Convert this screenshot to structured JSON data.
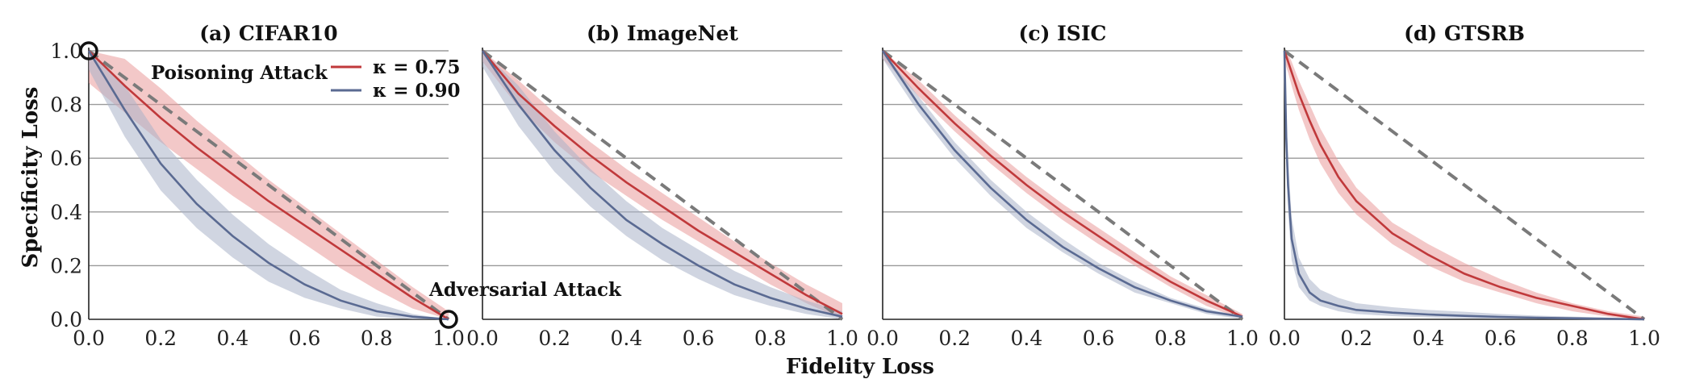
{
  "figure": {
    "xlabel": "Fidelity Loss",
    "ylabel": "Specificity Loss"
  },
  "legend": [
    {
      "label": "κ = 0.75",
      "color": "#c0393b"
    },
    {
      "label": "κ = 0.90",
      "color": "#5a6a92"
    }
  ],
  "annotations": {
    "poisoning": "Poisoning Attack",
    "adversarial": "Adversarial Attack"
  },
  "colors": {
    "red_line": "#c0393b",
    "red_band": "#e99a9a",
    "blue_line": "#5a6a92",
    "blue_band": "#a9b3c8",
    "diagonal": "#7a7a7a",
    "grid": "#9a9a9a"
  },
  "chart_data": [
    {
      "type": "line",
      "title": "(a) CIFAR10",
      "xlim": [
        0,
        1
      ],
      "ylim": [
        0,
        1
      ],
      "xticks": [
        "0.0",
        "0.2",
        "0.4",
        "0.6",
        "0.8",
        "1.0"
      ],
      "yticks": [
        "0.0",
        "0.2",
        "0.4",
        "0.6",
        "0.8",
        "1.0"
      ],
      "grid": "horizontal",
      "legend_position": "top-right",
      "x": [
        0,
        0.1,
        0.2,
        0.3,
        0.4,
        0.5,
        0.6,
        0.7,
        0.8,
        0.9,
        1.0
      ],
      "series": [
        {
          "name": "κ = 0.75",
          "values": [
            1.0,
            0.87,
            0.75,
            0.64,
            0.54,
            0.44,
            0.35,
            0.26,
            0.17,
            0.08,
            0.0
          ],
          "lower": [
            0.88,
            0.77,
            0.66,
            0.56,
            0.46,
            0.37,
            0.28,
            0.19,
            0.11,
            0.04,
            0.0
          ],
          "upper": [
            1.0,
            0.97,
            0.86,
            0.74,
            0.63,
            0.52,
            0.42,
            0.32,
            0.22,
            0.12,
            0.03
          ]
        },
        {
          "name": "κ = 0.90",
          "values": [
            1.0,
            0.78,
            0.58,
            0.43,
            0.31,
            0.21,
            0.13,
            0.07,
            0.03,
            0.01,
            0.0
          ],
          "lower": [
            0.93,
            0.68,
            0.48,
            0.34,
            0.23,
            0.14,
            0.08,
            0.04,
            0.01,
            0.0,
            0.0
          ],
          "upper": [
            1.0,
            0.87,
            0.67,
            0.52,
            0.39,
            0.28,
            0.19,
            0.11,
            0.06,
            0.02,
            0.0
          ]
        }
      ]
    },
    {
      "type": "line",
      "title": "(b) ImageNet",
      "xlim": [
        0,
        1
      ],
      "ylim": [
        0,
        1
      ],
      "xticks": [
        "0.0",
        "0.2",
        "0.4",
        "0.6",
        "0.8",
        "1.0"
      ],
      "yticks": [],
      "grid": "horizontal",
      "x": [
        0,
        0.1,
        0.2,
        0.3,
        0.4,
        0.5,
        0.6,
        0.7,
        0.8,
        0.9,
        1.0
      ],
      "series": [
        {
          "name": "κ = 0.75",
          "values": [
            1.0,
            0.84,
            0.72,
            0.61,
            0.51,
            0.42,
            0.33,
            0.25,
            0.17,
            0.09,
            0.02
          ],
          "lower": [
            0.96,
            0.79,
            0.66,
            0.55,
            0.46,
            0.37,
            0.29,
            0.21,
            0.13,
            0.06,
            0.0
          ],
          "upper": [
            1.0,
            0.89,
            0.77,
            0.66,
            0.56,
            0.47,
            0.38,
            0.29,
            0.21,
            0.13,
            0.06
          ]
        },
        {
          "name": "κ = 0.90",
          "values": [
            1.0,
            0.8,
            0.63,
            0.49,
            0.37,
            0.28,
            0.2,
            0.13,
            0.08,
            0.04,
            0.01
          ],
          "lower": [
            0.94,
            0.72,
            0.55,
            0.42,
            0.31,
            0.22,
            0.15,
            0.09,
            0.05,
            0.02,
            0.0
          ],
          "upper": [
            1.0,
            0.87,
            0.7,
            0.56,
            0.44,
            0.34,
            0.26,
            0.18,
            0.12,
            0.07,
            0.03
          ]
        }
      ]
    },
    {
      "type": "line",
      "title": "(c) ISIC",
      "xlim": [
        0,
        1
      ],
      "ylim": [
        0,
        1
      ],
      "xticks": [
        "0.0",
        "0.2",
        "0.4",
        "0.6",
        "0.8",
        "1.0"
      ],
      "yticks": [],
      "grid": "horizontal",
      "x": [
        0,
        0.1,
        0.2,
        0.3,
        0.4,
        0.5,
        0.6,
        0.7,
        0.8,
        0.9,
        1.0
      ],
      "series": [
        {
          "name": "κ = 0.75",
          "values": [
            1.0,
            0.86,
            0.73,
            0.61,
            0.5,
            0.4,
            0.31,
            0.22,
            0.14,
            0.07,
            0.01
          ],
          "lower": [
            0.97,
            0.83,
            0.7,
            0.58,
            0.47,
            0.37,
            0.28,
            0.2,
            0.12,
            0.05,
            0.0
          ],
          "upper": [
            1.0,
            0.89,
            0.76,
            0.64,
            0.53,
            0.43,
            0.34,
            0.25,
            0.16,
            0.09,
            0.02
          ]
        },
        {
          "name": "κ = 0.90",
          "values": [
            1.0,
            0.8,
            0.63,
            0.49,
            0.37,
            0.27,
            0.19,
            0.12,
            0.07,
            0.03,
            0.01
          ],
          "lower": [
            0.97,
            0.77,
            0.6,
            0.46,
            0.34,
            0.25,
            0.17,
            0.1,
            0.06,
            0.02,
            0.0
          ],
          "upper": [
            1.0,
            0.83,
            0.66,
            0.52,
            0.4,
            0.3,
            0.21,
            0.14,
            0.08,
            0.04,
            0.01
          ]
        }
      ]
    },
    {
      "type": "line",
      "title": "(d) GTSRB",
      "xlim": [
        0,
        1
      ],
      "ylim": [
        0,
        1
      ],
      "xticks": [
        "0.0",
        "0.2",
        "0.4",
        "0.6",
        "0.8",
        "1.0"
      ],
      "yticks": [],
      "grid": "horizontal",
      "x": [
        0,
        0.005,
        0.01,
        0.02,
        0.04,
        0.07,
        0.1,
        0.15,
        0.2,
        0.3,
        0.4,
        0.5,
        0.6,
        0.7,
        0.8,
        0.9,
        1.0
      ],
      "series": [
        {
          "name": "κ = 0.75",
          "values": [
            1.0,
            0.98,
            0.96,
            0.92,
            0.84,
            0.74,
            0.65,
            0.53,
            0.44,
            0.32,
            0.24,
            0.17,
            0.12,
            0.08,
            0.05,
            0.02,
            0.0
          ],
          "lower": [
            0.97,
            0.94,
            0.92,
            0.87,
            0.78,
            0.67,
            0.58,
            0.47,
            0.39,
            0.28,
            0.2,
            0.14,
            0.1,
            0.06,
            0.03,
            0.01,
            0.0
          ],
          "upper": [
            1.0,
            1.0,
            0.99,
            0.96,
            0.89,
            0.8,
            0.71,
            0.59,
            0.49,
            0.36,
            0.28,
            0.21,
            0.15,
            0.1,
            0.06,
            0.03,
            0.01
          ]
        },
        {
          "name": "κ = 0.90",
          "values": [
            1.0,
            0.68,
            0.5,
            0.3,
            0.17,
            0.1,
            0.07,
            0.05,
            0.035,
            0.025,
            0.018,
            0.013,
            0.009,
            0.006,
            0.004,
            0.002,
            0.0
          ],
          "lower": [
            0.95,
            0.58,
            0.4,
            0.22,
            0.12,
            0.07,
            0.05,
            0.03,
            0.02,
            0.012,
            0.007,
            0.004,
            0.002,
            0.001,
            0.0,
            0.0,
            0.0
          ],
          "upper": [
            1.0,
            0.78,
            0.6,
            0.38,
            0.23,
            0.15,
            0.11,
            0.08,
            0.06,
            0.045,
            0.035,
            0.028,
            0.02,
            0.014,
            0.01,
            0.006,
            0.002
          ]
        }
      ]
    }
  ]
}
